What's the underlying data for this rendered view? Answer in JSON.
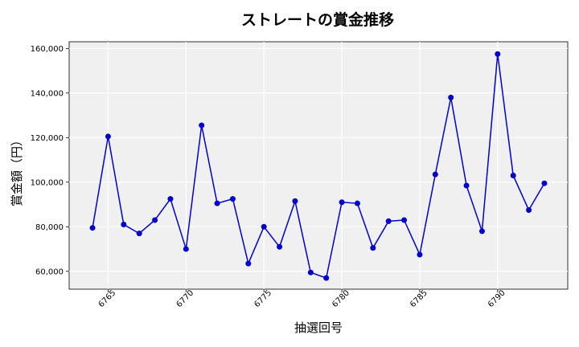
{
  "chart_data": {
    "type": "line",
    "title": "ストレートの賞金推移",
    "xlabel": "抽選回号",
    "ylabel": "賞金額（円）",
    "x": [
      6764,
      6765,
      6766,
      6767,
      6768,
      6769,
      6770,
      6771,
      6772,
      6773,
      6774,
      6775,
      6776,
      6777,
      6778,
      6779,
      6780,
      6781,
      6782,
      6783,
      6784,
      6785,
      6786,
      6787,
      6788,
      6789,
      6790,
      6791,
      6792,
      6793
    ],
    "series": [
      {
        "values": [
          79500,
          120500,
          81000,
          77000,
          83000,
          92500,
          70000,
          125500,
          90500,
          92500,
          63500,
          80000,
          71000,
          91500,
          59500,
          57000,
          91000,
          90500,
          70500,
          82500,
          83000,
          67500,
          103500,
          138000,
          98500,
          78000,
          157500,
          103000,
          87500,
          99500
        ],
        "color": "#0000cc"
      }
    ],
    "xlim": [
      6762.5,
      6794.5
    ],
    "ylim": [
      52000,
      163000
    ],
    "xticks": [
      6765,
      6770,
      6775,
      6780,
      6785,
      6790
    ],
    "xtick_labels": [
      "6765",
      "6770",
      "6775",
      "6780",
      "6785",
      "6790"
    ],
    "yticks": [
      60000,
      80000,
      100000,
      120000,
      140000,
      160000
    ],
    "ytick_labels": [
      "60,000",
      "80,000",
      "100,000",
      "120,000",
      "140,000",
      "160,000"
    ],
    "grid": true,
    "background": "#f0f0f0"
  }
}
